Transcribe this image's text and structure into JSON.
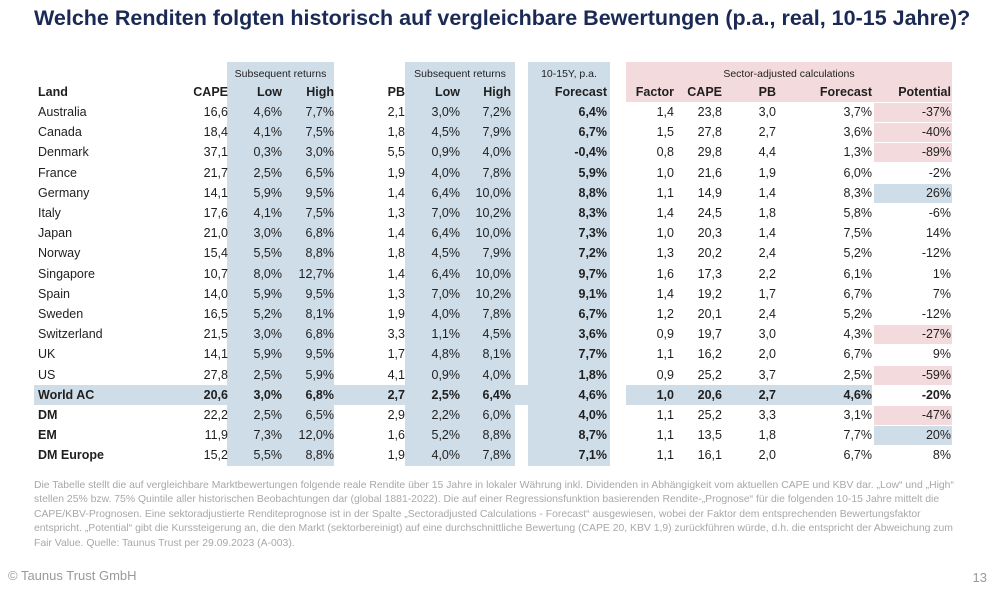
{
  "title": "Welche Renditen folgten historisch auf vergleichbare Bewertungen (p.a., real, 10-15 Jahre)?",
  "groups": {
    "subsequent_returns_cape": "Subsequent returns",
    "subsequent_returns_pb": "Subsequent returns",
    "forecast_group": "10-15Y, p.a.",
    "sector_adjusted": "Sector-adjusted calculations"
  },
  "headers": [
    "Land",
    "CAPE",
    "Low",
    "High",
    "PB",
    "Low",
    "High",
    "Forecast",
    "Factor",
    "CAPE",
    "PB",
    "Forecast",
    "Potential"
  ],
  "rows": [
    {
      "cells": [
        "Australia",
        "16,6",
        "4,6%",
        "7,7%",
        "2,1",
        "3,0%",
        "7,2%",
        "6,4%",
        "1,4",
        "23,8",
        "3,0",
        "3,7%",
        "-37%"
      ],
      "bold": false,
      "pot": "pink"
    },
    {
      "cells": [
        "Canada",
        "18,4",
        "4,1%",
        "7,5%",
        "1,8",
        "4,5%",
        "7,9%",
        "6,7%",
        "1,5",
        "27,8",
        "2,7",
        "3,6%",
        "-40%"
      ],
      "bold": false,
      "pot": "pink"
    },
    {
      "cells": [
        "Denmark",
        "37,1",
        "0,3%",
        "3,0%",
        "5,5",
        "0,9%",
        "4,0%",
        "-0,4%",
        "0,8",
        "29,8",
        "4,4",
        "1,3%",
        "-89%"
      ],
      "bold": false,
      "pot": "pink"
    },
    {
      "cells": [
        "France",
        "21,7",
        "2,5%",
        "6,5%",
        "1,9",
        "4,0%",
        "7,8%",
        "5,9%",
        "1,0",
        "21,6",
        "1,9",
        "6,0%",
        "-2%"
      ],
      "bold": false,
      "pot": ""
    },
    {
      "cells": [
        "Germany",
        "14,1",
        "5,9%",
        "9,5%",
        "1,4",
        "6,4%",
        "10,0%",
        "8,8%",
        "1,1",
        "14,9",
        "1,4",
        "8,3%",
        "26%"
      ],
      "bold": false,
      "pot": "blue"
    },
    {
      "cells": [
        "Italy",
        "17,6",
        "4,1%",
        "7,5%",
        "1,3",
        "7,0%",
        "10,2%",
        "8,3%",
        "1,4",
        "24,5",
        "1,8",
        "5,8%",
        "-6%"
      ],
      "bold": false,
      "pot": ""
    },
    {
      "cells": [
        "Japan",
        "21,0",
        "3,0%",
        "6,8%",
        "1,4",
        "6,4%",
        "10,0%",
        "7,3%",
        "1,0",
        "20,3",
        "1,4",
        "7,5%",
        "14%"
      ],
      "bold": false,
      "pot": ""
    },
    {
      "cells": [
        "Norway",
        "15,4",
        "5,5%",
        "8,8%",
        "1,8",
        "4,5%",
        "7,9%",
        "7,2%",
        "1,3",
        "20,2",
        "2,4",
        "5,2%",
        "-12%"
      ],
      "bold": false,
      "pot": ""
    },
    {
      "cells": [
        "Singapore",
        "10,7",
        "8,0%",
        "12,7%",
        "1,4",
        "6,4%",
        "10,0%",
        "9,7%",
        "1,6",
        "17,3",
        "2,2",
        "6,1%",
        "1%"
      ],
      "bold": false,
      "pot": ""
    },
    {
      "cells": [
        "Spain",
        "14,0",
        "5,9%",
        "9,5%",
        "1,3",
        "7,0%",
        "10,2%",
        "9,1%",
        "1,4",
        "19,2",
        "1,7",
        "6,7%",
        "7%"
      ],
      "bold": false,
      "pot": ""
    },
    {
      "cells": [
        "Sweden",
        "16,5",
        "5,2%",
        "8,1%",
        "1,9",
        "4,0%",
        "7,8%",
        "6,7%",
        "1,2",
        "20,1",
        "2,4",
        "5,2%",
        "-12%"
      ],
      "bold": false,
      "pot": ""
    },
    {
      "cells": [
        "Switzerland",
        "21,5",
        "3,0%",
        "6,8%",
        "3,3",
        "1,1%",
        "4,5%",
        "3,6%",
        "0,9",
        "19,7",
        "3,0",
        "4,3%",
        "-27%"
      ],
      "bold": false,
      "pot": "pink"
    },
    {
      "cells": [
        "UK",
        "14,1",
        "5,9%",
        "9,5%",
        "1,7",
        "4,8%",
        "8,1%",
        "7,7%",
        "1,1",
        "16,2",
        "2,0",
        "6,7%",
        "9%"
      ],
      "bold": false,
      "pot": ""
    },
    {
      "cells": [
        "US",
        "27,8",
        "2,5%",
        "5,9%",
        "4,1",
        "0,9%",
        "4,0%",
        "1,8%",
        "0,9",
        "25,2",
        "3,7",
        "2,5%",
        "-59%"
      ],
      "bold": false,
      "pot": "pink"
    },
    {
      "cells": [
        "World AC",
        "20,6",
        "3,0%",
        "6,8%",
        "2,7",
        "2,5%",
        "6,4%",
        "4,6%",
        "1,0",
        "20,6",
        "2,7",
        "4,6%",
        "-20%"
      ],
      "bold": true,
      "pot": ""
    },
    {
      "cells": [
        "DM",
        "22,2",
        "2,5%",
        "6,5%",
        "2,9",
        "2,2%",
        "6,0%",
        "4,0%",
        "1,1",
        "25,2",
        "3,3",
        "3,1%",
        "-47%"
      ],
      "bold": false,
      "pot": "pink"
    },
    {
      "cells": [
        "EM",
        "11,9",
        "7,3%",
        "12,0%",
        "1,6",
        "5,2%",
        "8,8%",
        "8,7%",
        "1,1",
        "13,5",
        "1,8",
        "7,7%",
        "20%"
      ],
      "bold": false,
      "pot": "blue"
    },
    {
      "cells": [
        "DM Europe",
        "15,2",
        "5,5%",
        "8,8%",
        "1,9",
        "4,0%",
        "7,8%",
        "7,1%",
        "1,1",
        "16,1",
        "2,0",
        "6,7%",
        "8%"
      ],
      "bold": false,
      "pot": ""
    }
  ],
  "note": "Die Tabelle stellt die auf vergleichbare Marktbewertungen folgende reale Rendite über 15 Jahre in lokaler Währung inkl. Dividenden in Abhängigkeit vom aktuellen CAPE und KBV dar. „Low“ und „High“ stellen 25% bzw. 75% Quintile aller historischen Beobachtungen dar (global 1881-2022). Die auf einer Regressionsfunktion basierenden Rendite-„Prognose“ für die folgenden 10-15 Jahre mittelt die CAPE/KBV-Prognosen. Eine sektoradjustierte Renditeprognose ist in der Spalte „Sectoradjusted Calculations - Forecast“ ausgewiesen, wobei der Faktor dem entsprechenden Bewertungsfaktor entspricht. „Potential“ gibt die Kurssteigerung an, die den Markt (sektorbereinigt) auf eine durchschnittliche Bewertung (CAPE 20, KBV 1,9) zurückführen würde, d.h. die entspricht der Abweichung zum Fair Value.  Quelle: Taunus Trust per 29.09.2023 (A-003).",
  "footer": "© Taunus Trust GmbH",
  "page_number": "13"
}
